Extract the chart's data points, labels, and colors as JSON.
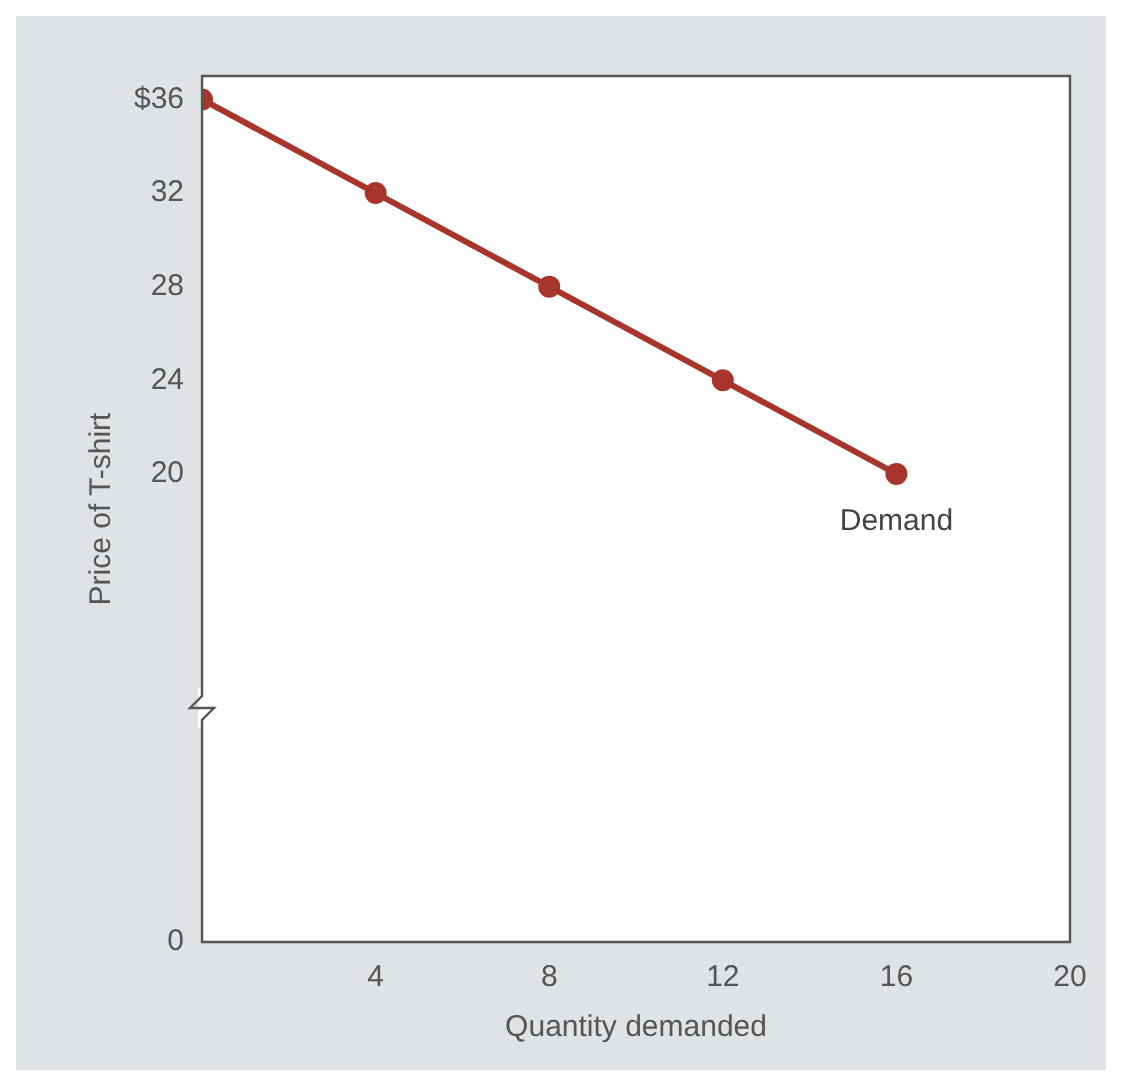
{
  "chart_data": {
    "type": "line",
    "xlabel": "Quantity demanded",
    "ylabel": "Price of T-shirt",
    "x": [
      0,
      4,
      8,
      12,
      16
    ],
    "series": [
      {
        "color": "#a8352b",
        "values": [
          36,
          32,
          28,
          24,
          20
        ]
      }
    ],
    "xlim": [
      0,
      20
    ],
    "xticks": [
      4,
      8,
      12,
      16,
      20
    ],
    "ylim": [
      0,
      37
    ],
    "yticks": [
      0,
      20,
      24,
      28,
      32,
      {
        "value": 36,
        "label": "$36"
      }
    ],
    "annotations": [
      "Demand"
    ],
    "marker": "circle",
    "line_style": "solid",
    "grid": false,
    "legend": false
  }
}
